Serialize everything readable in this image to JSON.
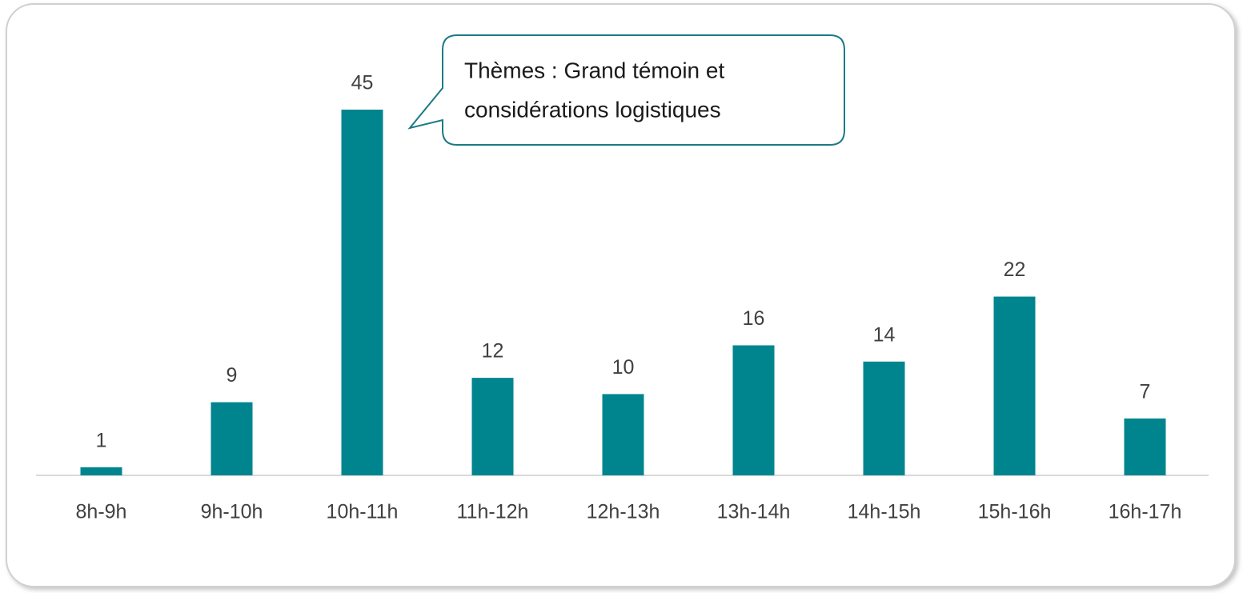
{
  "chart_data": {
    "type": "bar",
    "categories": [
      "8h-9h",
      "9h-10h",
      "10h-11h",
      "11h-12h",
      "12h-13h",
      "13h-14h",
      "14h-15h",
      "15h-16h",
      "16h-17h"
    ],
    "values": [
      1,
      9,
      45,
      12,
      10,
      16,
      14,
      22,
      7
    ],
    "color": "#00858f",
    "ylim": [
      0,
      45
    ],
    "annotation": [
      "Thèmes : Grand témoin et",
      "considérations logistiques"
    ]
  }
}
